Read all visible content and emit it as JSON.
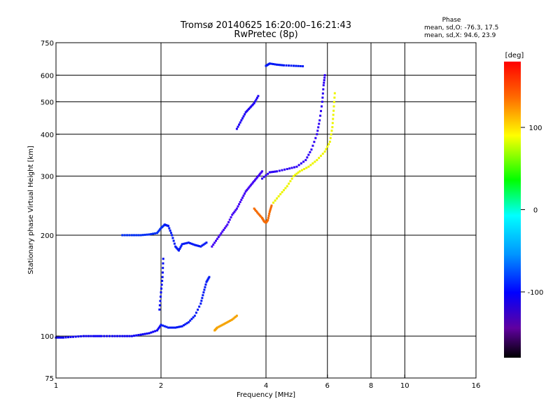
{
  "chart_data": {
    "type": "scatter",
    "title": "Tromsø 20140625 16:20:00–16:21:43",
    "subtitle": "RwPretec (8p)",
    "xlabel": "Frequency [MHz]",
    "ylabel": "Stationary phase Virtual Height [km]",
    "x_scale": "log",
    "y_scale": "log",
    "xlim": [
      1,
      16
    ],
    "ylim": [
      75,
      750
    ],
    "x_ticks": [
      1,
      2,
      4,
      6,
      8,
      10,
      16
    ],
    "x_tick_labels": [
      "1",
      "2",
      "4",
      "6",
      "8",
      "10",
      "16"
    ],
    "y_ticks": [
      75,
      100,
      200,
      300,
      400,
      500,
      600,
      750
    ],
    "y_tick_labels": [
      "75",
      "100",
      "200",
      "300",
      "400",
      "500",
      "600",
      "750"
    ],
    "x_grid": [
      2,
      4,
      6,
      8,
      10
    ],
    "y_grid": [
      100,
      200,
      300,
      400,
      500,
      600
    ],
    "stats": {
      "heading": "Phase",
      "line_o": "mean, sd,O: -76.3, 17.5",
      "line_x": "mean, sd,X:  94.6, 23.9"
    },
    "colorbar": {
      "label": "[deg]",
      "range": [
        -180,
        180
      ],
      "ticks": [
        100,
        0,
        -100
      ],
      "tick_labels": [
        "100",
        "0",
        "-100"
      ],
      "colormap": "rainbow (black-purple-blue-cyan-green-yellow-red)"
    },
    "traces": [
      {
        "x": [
          1.0,
          1.05,
          1.12,
          1.2,
          1.28,
          1.35,
          1.45,
          1.55,
          1.65,
          1.75,
          1.85,
          1.95,
          2.0
        ],
        "y": [
          99,
          99,
          99.5,
          100,
          100,
          100,
          100,
          100,
          100,
          101,
          102,
          104,
          108
        ],
        "phase": -95
      },
      {
        "x": [
          2.0,
          2.1,
          2.2,
          2.3,
          2.4,
          2.5,
          2.6,
          2.65,
          2.7,
          2.75
        ],
        "y": [
          108,
          106,
          106,
          107,
          110,
          115,
          125,
          135,
          145,
          150
        ],
        "phase": -85
      },
      {
        "x": [
          1.55,
          1.65,
          1.75,
          1.85,
          1.95,
          2.0,
          2.05
        ],
        "y": [
          200,
          200,
          200,
          201,
          203,
          210,
          215
        ],
        "phase": -80
      },
      {
        "x": [
          2.05,
          2.1,
          2.15,
          2.2,
          2.25,
          2.3,
          2.4,
          2.5,
          2.6,
          2.7
        ],
        "y": [
          215,
          213,
          200,
          185,
          180,
          188,
          190,
          187,
          185,
          190
        ],
        "phase": -85
      },
      {
        "x": [
          1.98,
          2.0,
          2.02,
          2.03
        ],
        "y": [
          120,
          135,
          150,
          170
        ],
        "phase": -90
      },
      {
        "x": [
          2.85,
          2.9,
          3.0,
          3.1,
          3.2,
          3.3
        ],
        "y": [
          104,
          106,
          108,
          110,
          112,
          115
        ],
        "phase": 135
      },
      {
        "x": [
          3.7,
          3.8,
          3.9,
          3.95,
          4.0,
          4.05,
          4.1,
          4.15
        ],
        "y": [
          240,
          232,
          225,
          220,
          218,
          222,
          235,
          245
        ],
        "phase": 150
      },
      {
        "x": [
          4.2,
          4.4,
          4.6,
          4.8,
          5.0,
          5.3,
          5.6,
          5.9,
          6.1,
          6.2,
          6.25,
          6.3
        ],
        "y": [
          250,
          265,
          280,
          300,
          310,
          320,
          335,
          355,
          380,
          420,
          470,
          530
        ],
        "phase": 110
      },
      {
        "x": [
          3.9,
          4.1,
          4.3,
          4.6,
          4.9,
          5.2,
          5.4,
          5.6,
          5.7,
          5.8,
          5.85,
          5.9
        ],
        "y": [
          295,
          308,
          310,
          315,
          320,
          335,
          360,
          400,
          440,
          500,
          560,
          600
        ],
        "phase": -105
      },
      {
        "x": [
          3.3,
          3.4,
          3.5,
          3.6,
          3.7,
          3.8
        ],
        "y": [
          415,
          440,
          465,
          480,
          495,
          520
        ],
        "phase": -100
      },
      {
        "x": [
          4.0,
          4.1,
          4.3,
          4.5,
          4.8,
          5.1
        ],
        "y": [
          640,
          650,
          645,
          642,
          640,
          638
        ],
        "phase": -85
      },
      {
        "x": [
          2.8,
          2.9,
          3.0,
          3.1,
          3.2,
          3.3,
          3.4,
          3.5,
          3.6,
          3.7,
          3.8,
          3.9
        ],
        "y": [
          185,
          195,
          205,
          215,
          230,
          240,
          255,
          270,
          280,
          290,
          300,
          310
        ],
        "phase": -110
      }
    ]
  }
}
